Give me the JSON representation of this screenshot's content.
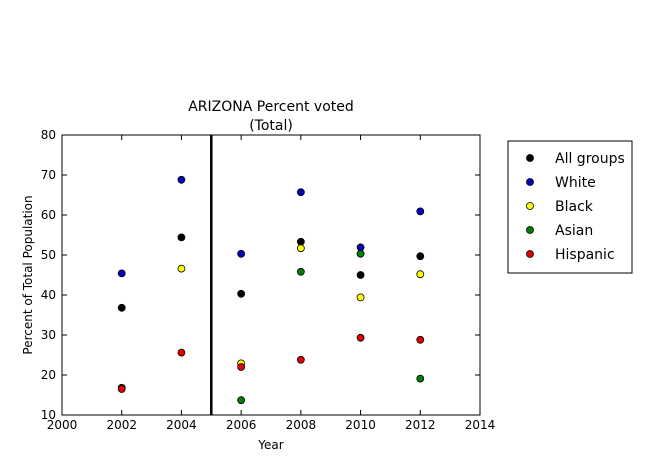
{
  "chart_data": {
    "type": "scatter",
    "title_line1": "ARIZONA Percent voted",
    "title_line2": "(Total)",
    "xlabel": "Year",
    "ylabel": "Percent of Total Population",
    "xlim": [
      2000,
      2014
    ],
    "ylim": [
      10,
      80
    ],
    "xticks": [
      "2000",
      "2002",
      "2004",
      "2006",
      "2008",
      "2010",
      "2012",
      "2014"
    ],
    "yticks": [
      "10",
      "20",
      "30",
      "40",
      "50",
      "60",
      "70",
      "80"
    ],
    "vertical_line_x": 2005,
    "legend_position": "right, outside plot",
    "grid": false,
    "x": [
      2002,
      2004,
      2006,
      2008,
      2010,
      2012
    ],
    "series": [
      {
        "name": "All groups",
        "color": "#000000",
        "values": [
          36.8,
          54.4,
          40.3,
          53.3,
          45.0,
          49.7
        ]
      },
      {
        "name": "White",
        "color": "#0000bf",
        "values": [
          45.4,
          68.8,
          50.3,
          65.7,
          51.9,
          60.9
        ]
      },
      {
        "name": "Black",
        "color": "#ffff00",
        "values": [
          null,
          46.6,
          22.9,
          51.7,
          39.4,
          45.2
        ]
      },
      {
        "name": "Asian",
        "color": "#007f00",
        "values": [
          16.8,
          null,
          13.7,
          45.8,
          50.3,
          19.1
        ]
      },
      {
        "name": "Hispanic",
        "color": "#e00000",
        "values": [
          16.5,
          25.6,
          22.0,
          23.8,
          29.3,
          28.8
        ]
      }
    ]
  }
}
